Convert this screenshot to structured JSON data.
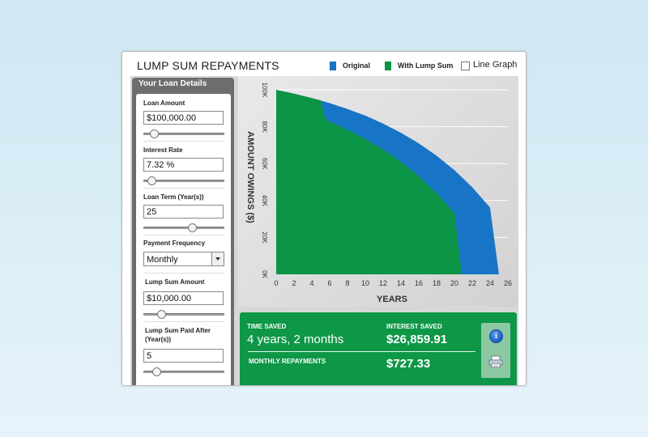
{
  "title": "LUMP SUM REPAYMENTS",
  "legend": {
    "original_label": "Original",
    "lump_label": "With Lump Sum",
    "line_graph_label": "Line Graph",
    "original_color": "#1874c6",
    "lump_color": "#0b9445"
  },
  "sidebar": {
    "header": "Your Loan Details",
    "loan_amount_label": "Loan Amount",
    "loan_amount_value": "$100,000.00",
    "interest_rate_label": "Interest Rate",
    "interest_rate_value": "7.32 %",
    "loan_term_label": "Loan Term (Year(s))",
    "loan_term_value": "25",
    "payment_frequency_label": "Payment Frequency",
    "payment_frequency_value": "Monthly",
    "lump_sum_amount_label": "Lump Sum Amount",
    "lump_sum_amount_value": "$10,000.00",
    "lump_sum_paid_after_label": "Lump Sum Paid After (Year(s))",
    "lump_sum_paid_after_value": "5"
  },
  "results": {
    "time_saved_label": "TIME SAVED",
    "time_saved_value": "4 years, 2 months",
    "interest_saved_label": "INTEREST SAVED",
    "interest_saved_value": "$26,859.91",
    "monthly_repayments_label": "MONTHLY REPAYMENTS",
    "monthly_repayments_value": "$727.33"
  },
  "chart_data": {
    "type": "area",
    "ylabel": "AMOUNT OWINGS ($)",
    "xlabel": "YEARS",
    "x_ticks": [
      "0",
      "2",
      "4",
      "6",
      "8",
      "10",
      "12",
      "14",
      "16",
      "18",
      "20",
      "22",
      "24",
      "26"
    ],
    "y_ticks": [
      "0K",
      "20K",
      "40K",
      "60K",
      "80K",
      "100K"
    ],
    "xlim": [
      0,
      26
    ],
    "ylim": [
      0,
      100000
    ],
    "grid": true,
    "series": [
      {
        "name": "Original",
        "color": "#1874c6",
        "x": [
          0,
          2,
          4,
          6,
          8,
          10,
          12,
          14,
          16,
          18,
          20,
          22,
          24,
          25
        ],
        "y": [
          100000,
          97900,
          95500,
          92800,
          89600,
          86000,
          81700,
          76700,
          71000,
          64300,
          56500,
          47200,
          36200,
          0
        ]
      },
      {
        "name": "With Lump Sum",
        "color": "#0b9445",
        "x": [
          0,
          2,
          4,
          5,
          5.5,
          6,
          8,
          10,
          12,
          14,
          16,
          18,
          20,
          20.83
        ],
        "y": [
          100000,
          97900,
          95500,
          94300,
          84300,
          82800,
          78400,
          73400,
          67700,
          61000,
          53200,
          44000,
          33300,
          0
        ]
      }
    ]
  }
}
